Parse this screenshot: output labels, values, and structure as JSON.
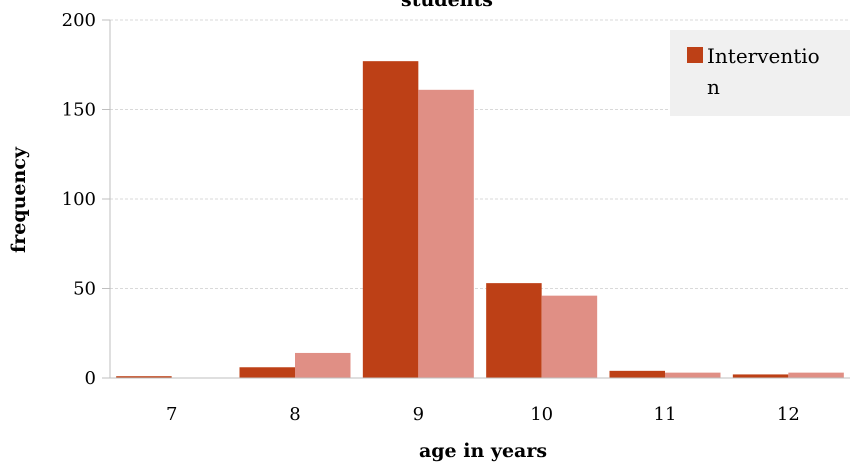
{
  "chart_data": {
    "type": "bar",
    "title": "students",
    "xlabel": "age in years",
    "ylabel": "frequency",
    "categories": [
      "7",
      "8",
      "9",
      "10",
      "11",
      "12"
    ],
    "series": [
      {
        "name": "Intervention",
        "color": "#bd4016",
        "values": [
          1,
          6,
          177,
          53,
          4,
          2
        ]
      },
      {
        "color": "#e08f85",
        "values": [
          0,
          14,
          161,
          46,
          3,
          3
        ]
      }
    ],
    "ylim": [
      0,
      200
    ],
    "yticks": [
      0,
      50,
      100,
      150,
      200
    ],
    "grid": true,
    "legend": {
      "position": "top-right",
      "label_lines": [
        "Interventio",
        "n"
      ]
    }
  }
}
